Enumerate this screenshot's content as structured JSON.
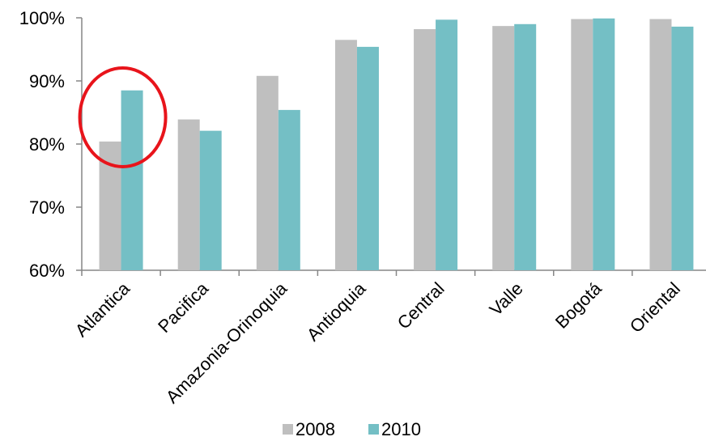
{
  "chart_data": {
    "type": "bar",
    "categories": [
      "Atlantica",
      "Pacifica",
      "Amazonia-Orinoquia",
      "Antioquia",
      "Central",
      "Valle",
      "Bogotá",
      "Oriental"
    ],
    "series": [
      {
        "name": "2008",
        "color": "#bfbfbf",
        "values": [
          80.4,
          83.9,
          90.8,
          96.5,
          98.2,
          98.7,
          99.8,
          99.8
        ]
      },
      {
        "name": "2010",
        "color": "#74bfc5",
        "values": [
          88.5,
          82.1,
          85.4,
          95.4,
          99.7,
          99.0,
          99.9,
          98.6
        ]
      }
    ],
    "ylim": [
      60,
      100
    ],
    "yticks": [
      60,
      70,
      80,
      90,
      100
    ],
    "ytick_labels": [
      "60%",
      "70%",
      "80%",
      "90%",
      "100%"
    ],
    "title": "",
    "xlabel": "",
    "ylabel": "",
    "grid": false,
    "legend_position": "bottom",
    "annotation": {
      "type": "ellipse",
      "category": "Atlantica",
      "color": "#e8141b"
    }
  }
}
